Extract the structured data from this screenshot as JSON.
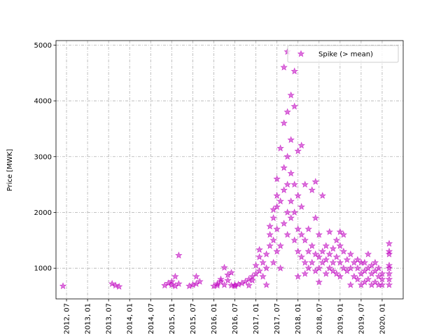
{
  "chart_data": {
    "type": "scatter",
    "title": "",
    "xlabel": "",
    "ylabel": "Price [MWK]",
    "grid": true,
    "legend_position": "top-right",
    "colors": {
      "series": "#bf00bf"
    },
    "x_tick_labels": [
      "2012, 07",
      "2013, 01",
      "2013, 07",
      "2014, 01",
      "2014, 07",
      "2015, 01",
      "2015, 07",
      "2016, 01",
      "2016, 07",
      "2017, 01",
      "2017, 07",
      "2018, 01",
      "2018, 07",
      "2019, 01",
      "2019, 07",
      "2020, 01"
    ],
    "x_tick_values": [
      "2012-07",
      "2013-01",
      "2013-07",
      "2014-01",
      "2014-07",
      "2015-01",
      "2015-07",
      "2016-01",
      "2016-07",
      "2017-01",
      "2017-07",
      "2018-01",
      "2018-07",
      "2019-01",
      "2019-07",
      "2020-01"
    ],
    "y_ticks": [
      1000,
      2000,
      3000,
      4000,
      5000
    ],
    "xlim": [
      "2012-04",
      "2020-07"
    ],
    "ylim": [
      450,
      5080
    ],
    "series": [
      {
        "name": "Spike (> mean)",
        "marker": "star",
        "points": [
          {
            "x": "2012-06",
            "y": 680
          },
          {
            "x": "2013-08",
            "y": 720
          },
          {
            "x": "2013-09",
            "y": 690
          },
          {
            "x": "2013-10",
            "y": 670
          },
          {
            "x": "2014-11",
            "y": 690
          },
          {
            "x": "2014-12",
            "y": 730
          },
          {
            "x": "2015-01",
            "y": 700
          },
          {
            "x": "2015-01",
            "y": 760
          },
          {
            "x": "2015-02",
            "y": 680
          },
          {
            "x": "2015-02",
            "y": 850
          },
          {
            "x": "2015-03",
            "y": 1230
          },
          {
            "x": "2015-03",
            "y": 720
          },
          {
            "x": "2015-06",
            "y": 680
          },
          {
            "x": "2015-07",
            "y": 700
          },
          {
            "x": "2015-08",
            "y": 850
          },
          {
            "x": "2015-08",
            "y": 720
          },
          {
            "x": "2015-09",
            "y": 760
          },
          {
            "x": "2016-01",
            "y": 680
          },
          {
            "x": "2016-02",
            "y": 690
          },
          {
            "x": "2016-02",
            "y": 720
          },
          {
            "x": "2016-03",
            "y": 760
          },
          {
            "x": "2016-03",
            "y": 800
          },
          {
            "x": "2016-04",
            "y": 700
          },
          {
            "x": "2016-04",
            "y": 1010
          },
          {
            "x": "2016-05",
            "y": 780
          },
          {
            "x": "2016-05",
            "y": 880
          },
          {
            "x": "2016-06",
            "y": 690
          },
          {
            "x": "2016-06",
            "y": 920
          },
          {
            "x": "2016-07",
            "y": 700
          },
          {
            "x": "2016-07",
            "y": 680
          },
          {
            "x": "2016-08",
            "y": 710
          },
          {
            "x": "2016-09",
            "y": 730
          },
          {
            "x": "2016-10",
            "y": 760
          },
          {
            "x": "2016-11",
            "y": 690
          },
          {
            "x": "2016-11",
            "y": 800
          },
          {
            "x": "2016-12",
            "y": 780
          },
          {
            "x": "2016-12",
            "y": 850
          },
          {
            "x": "2017-01",
            "y": 900
          },
          {
            "x": "2017-01",
            "y": 1050
          },
          {
            "x": "2017-02",
            "y": 950
          },
          {
            "x": "2017-02",
            "y": 1200
          },
          {
            "x": "2017-02",
            "y": 1330
          },
          {
            "x": "2017-03",
            "y": 850
          },
          {
            "x": "2017-03",
            "y": 1100
          },
          {
            "x": "2017-04",
            "y": 700
          },
          {
            "x": "2017-04",
            "y": 1000
          },
          {
            "x": "2017-04",
            "y": 1250
          },
          {
            "x": "2017-05",
            "y": 1400
          },
          {
            "x": "2017-05",
            "y": 1600
          },
          {
            "x": "2017-05",
            "y": 1750
          },
          {
            "x": "2017-06",
            "y": 1100
          },
          {
            "x": "2017-06",
            "y": 1500
          },
          {
            "x": "2017-06",
            "y": 1900
          },
          {
            "x": "2017-06",
            "y": 2050
          },
          {
            "x": "2017-07",
            "y": 1300
          },
          {
            "x": "2017-07",
            "y": 1700
          },
          {
            "x": "2017-07",
            "y": 2100
          },
          {
            "x": "2017-07",
            "y": 2300
          },
          {
            "x": "2017-07",
            "y": 2600
          },
          {
            "x": "2017-08",
            "y": 1000
          },
          {
            "x": "2017-08",
            "y": 1400
          },
          {
            "x": "2017-08",
            "y": 2200
          },
          {
            "x": "2017-08",
            "y": 3150
          },
          {
            "x": "2017-09",
            "y": 1800
          },
          {
            "x": "2017-09",
            "y": 2400
          },
          {
            "x": "2017-09",
            "y": 2800
          },
          {
            "x": "2017-09",
            "y": 3600
          },
          {
            "x": "2017-09",
            "y": 4600
          },
          {
            "x": "2017-10",
            "y": 1600
          },
          {
            "x": "2017-10",
            "y": 2000
          },
          {
            "x": "2017-10",
            "y": 2500
          },
          {
            "x": "2017-10",
            "y": 3000
          },
          {
            "x": "2017-10",
            "y": 3800
          },
          {
            "x": "2017-10",
            "y": 4880
          },
          {
            "x": "2017-11",
            "y": 2200
          },
          {
            "x": "2017-11",
            "y": 2700
          },
          {
            "x": "2017-11",
            "y": 3300
          },
          {
            "x": "2017-11",
            "y": 4100
          },
          {
            "x": "2017-11",
            "y": 1900
          },
          {
            "x": "2017-12",
            "y": 2000
          },
          {
            "x": "2017-12",
            "y": 2500
          },
          {
            "x": "2017-12",
            "y": 3900
          },
          {
            "x": "2017-12",
            "y": 4530
          },
          {
            "x": "2017-12",
            "y": 1500
          },
          {
            "x": "2018-01",
            "y": 1300
          },
          {
            "x": "2018-01",
            "y": 1700
          },
          {
            "x": "2018-01",
            "y": 2300
          },
          {
            "x": "2018-01",
            "y": 3100
          },
          {
            "x": "2018-01",
            "y": 850
          },
          {
            "x": "2018-02",
            "y": 1200
          },
          {
            "x": "2018-02",
            "y": 1600
          },
          {
            "x": "2018-02",
            "y": 2100
          },
          {
            "x": "2018-02",
            "y": 3200
          },
          {
            "x": "2018-03",
            "y": 1100
          },
          {
            "x": "2018-03",
            "y": 1500
          },
          {
            "x": "2018-03",
            "y": 2500
          },
          {
            "x": "2018-03",
            "y": 900
          },
          {
            "x": "2018-04",
            "y": 1000
          },
          {
            "x": "2018-04",
            "y": 1300
          },
          {
            "x": "2018-04",
            "y": 1700
          },
          {
            "x": "2018-05",
            "y": 1100
          },
          {
            "x": "2018-05",
            "y": 1400
          },
          {
            "x": "2018-05",
            "y": 2400
          },
          {
            "x": "2018-06",
            "y": 950
          },
          {
            "x": "2018-06",
            "y": 1250
          },
          {
            "x": "2018-06",
            "y": 2550
          },
          {
            "x": "2018-06",
            "y": 1900
          },
          {
            "x": "2018-07",
            "y": 1000
          },
          {
            "x": "2018-07",
            "y": 1200
          },
          {
            "x": "2018-07",
            "y": 1600
          },
          {
            "x": "2018-07",
            "y": 750
          },
          {
            "x": "2018-08",
            "y": 1100
          },
          {
            "x": "2018-08",
            "y": 1300
          },
          {
            "x": "2018-08",
            "y": 2300
          },
          {
            "x": "2018-09",
            "y": 900
          },
          {
            "x": "2018-09",
            "y": 1150
          },
          {
            "x": "2018-09",
            "y": 1400
          },
          {
            "x": "2018-10",
            "y": 1000
          },
          {
            "x": "2018-10",
            "y": 1250
          },
          {
            "x": "2018-10",
            "y": 1650
          },
          {
            "x": "2018-11",
            "y": 950
          },
          {
            "x": "2018-11",
            "y": 1100
          },
          {
            "x": "2018-11",
            "y": 1350
          },
          {
            "x": "2018-12",
            "y": 900
          },
          {
            "x": "2018-12",
            "y": 1200
          },
          {
            "x": "2018-12",
            "y": 1500
          },
          {
            "x": "2019-01",
            "y": 850
          },
          {
            "x": "2019-01",
            "y": 1100
          },
          {
            "x": "2019-01",
            "y": 1400
          },
          {
            "x": "2019-01",
            "y": 1650
          },
          {
            "x": "2019-02",
            "y": 1000
          },
          {
            "x": "2019-02",
            "y": 1300
          },
          {
            "x": "2019-02",
            "y": 1600
          },
          {
            "x": "2019-03",
            "y": 950
          },
          {
            "x": "2019-03",
            "y": 1150
          },
          {
            "x": "2019-04",
            "y": 700
          },
          {
            "x": "2019-04",
            "y": 1000
          },
          {
            "x": "2019-04",
            "y": 1250
          },
          {
            "x": "2019-05",
            "y": 850
          },
          {
            "x": "2019-05",
            "y": 1100
          },
          {
            "x": "2019-06",
            "y": 800
          },
          {
            "x": "2019-06",
            "y": 1000
          },
          {
            "x": "2019-06",
            "y": 1150
          },
          {
            "x": "2019-07",
            "y": 700
          },
          {
            "x": "2019-07",
            "y": 900
          },
          {
            "x": "2019-07",
            "y": 1100
          },
          {
            "x": "2019-08",
            "y": 750
          },
          {
            "x": "2019-08",
            "y": 950
          },
          {
            "x": "2019-08",
            "y": 1100
          },
          {
            "x": "2019-09",
            "y": 800
          },
          {
            "x": "2019-09",
            "y": 1000
          },
          {
            "x": "2019-09",
            "y": 1250
          },
          {
            "x": "2019-10",
            "y": 700
          },
          {
            "x": "2019-10",
            "y": 900
          },
          {
            "x": "2019-10",
            "y": 1050
          },
          {
            "x": "2019-11",
            "y": 750
          },
          {
            "x": "2019-11",
            "y": 950
          },
          {
            "x": "2019-11",
            "y": 1100
          },
          {
            "x": "2019-12",
            "y": 700
          },
          {
            "x": "2019-12",
            "y": 850
          },
          {
            "x": "2019-12",
            "y": 1000
          },
          {
            "x": "2020-01",
            "y": 700
          },
          {
            "x": "2020-01",
            "y": 800
          },
          {
            "x": "2020-01",
            "y": 900
          },
          {
            "x": "2020-03",
            "y": 700
          },
          {
            "x": "2020-03",
            "y": 800
          },
          {
            "x": "2020-03",
            "y": 900
          },
          {
            "x": "2020-03",
            "y": 1000
          },
          {
            "x": "2020-03",
            "y": 1050
          },
          {
            "x": "2020-03",
            "y": 1250
          },
          {
            "x": "2020-03",
            "y": 1300
          },
          {
            "x": "2020-03",
            "y": 1440
          }
        ]
      }
    ]
  }
}
